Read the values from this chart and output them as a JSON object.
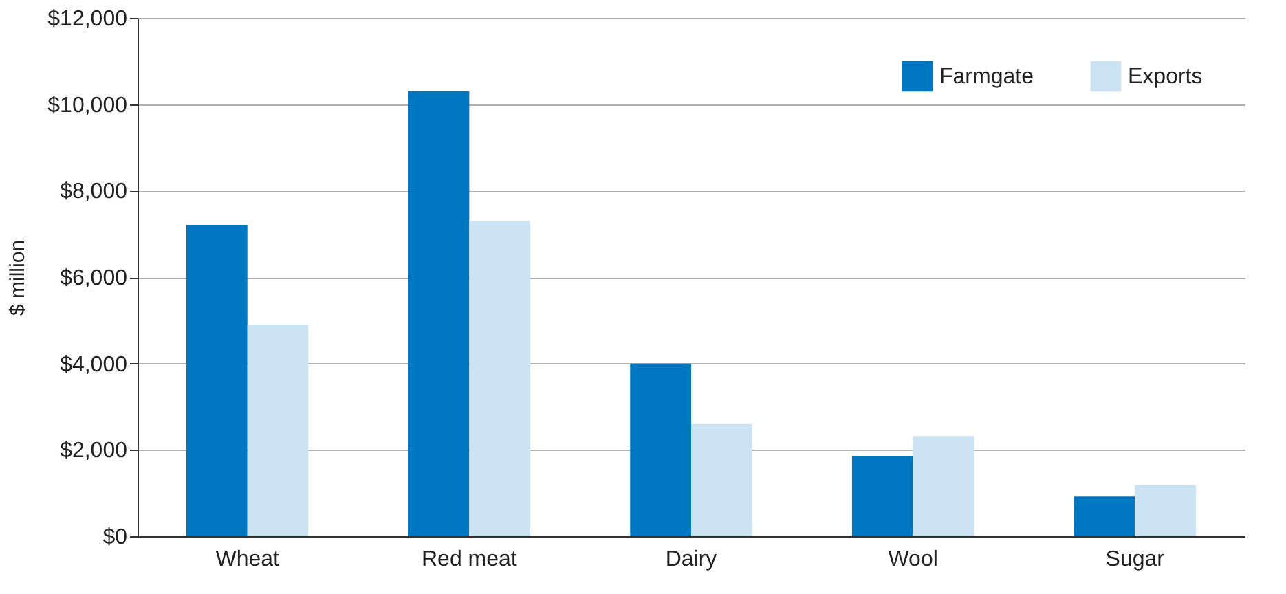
{
  "chart_data": {
    "type": "bar",
    "ylabel": "$ million",
    "categories": [
      "Wheat",
      "Red meat",
      "Dairy",
      "Wool",
      "Sugar"
    ],
    "series": [
      {
        "name": "Farmgate",
        "color": "#0077c0",
        "values": [
          7200,
          10300,
          4000,
          1850,
          920
        ]
      },
      {
        "name": "Exports",
        "color": "#cce3f3",
        "values": [
          4900,
          7300,
          2600,
          2320,
          1180
        ]
      }
    ],
    "ylim": [
      0,
      12000
    ],
    "yticks": [
      {
        "value": 0,
        "label": "$0"
      },
      {
        "value": 2000,
        "label": "$2,000"
      },
      {
        "value": 4000,
        "label": "$4,000"
      },
      {
        "value": 6000,
        "label": "$6,000"
      },
      {
        "value": 8000,
        "label": "$8,000"
      },
      {
        "value": 10000,
        "label": "$10,000"
      },
      {
        "value": 12000,
        "label": "$12,000"
      }
    ],
    "grid": "y",
    "legend": "top right"
  }
}
